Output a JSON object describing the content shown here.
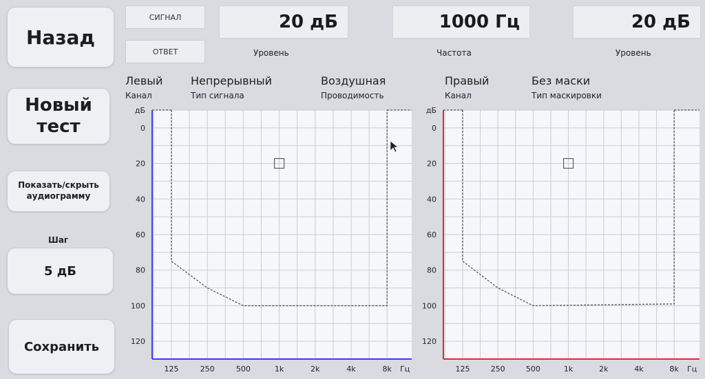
{
  "nav": {
    "back_label": "Назад",
    "new_test_label": "Новый тест",
    "toggle_label": "Показать/скрыть аудиограмму",
    "step_caption": "Шаг",
    "step_value": "5 дБ",
    "save_label": "Сохранить"
  },
  "indicators": {
    "signal_label": "СИГНАЛ",
    "response_label": "ОТВЕТ"
  },
  "readouts": {
    "level_left_value": "20 дБ",
    "level_left_caption": "Уровень",
    "frequency_value": "1000 Гц",
    "frequency_caption": "Частота",
    "level_right_value": "20 дБ",
    "level_right_caption": "Уровень"
  },
  "left_info": {
    "channel_value": "Левый",
    "channel_caption": "Канал",
    "signal_type_value": "Непрерывный",
    "signal_type_caption": "Тип сигнала",
    "conduction_value": "Воздушная",
    "conduction_caption": "Проводимость"
  },
  "right_info": {
    "channel_value": "Правый",
    "channel_caption": "Канал",
    "masking_value": "Без маски",
    "masking_caption": "Тип маскировки"
  },
  "chart_data": [
    {
      "type": "line",
      "panel": "left",
      "axis_color": "#3a3aff",
      "x": [
        "125",
        "250",
        "500",
        "1k",
        "2k",
        "4k",
        "8k"
      ],
      "xlabel": "Гц",
      "ylabel": "дБ",
      "y_ticks": [
        0,
        20,
        40,
        60,
        80,
        100,
        120
      ],
      "ylim": [
        -10,
        130
      ],
      "grid": true,
      "limit_boundary": [
        {
          "x": "125",
          "y": -10
        },
        {
          "x": "125",
          "y": 75
        },
        {
          "x": "250",
          "y": 90
        },
        {
          "x": "500",
          "y": 100
        },
        {
          "x": "8k",
          "y": 100
        },
        {
          "x": "8k",
          "y": -10
        }
      ],
      "cursor": {
        "x": "1k",
        "y": 20
      }
    },
    {
      "type": "line",
      "panel": "right",
      "axis_color": "#e02a2a",
      "x": [
        "125",
        "250",
        "500",
        "1k",
        "2k",
        "4k",
        "8k"
      ],
      "xlabel": "Гц",
      "ylabel": "дБ",
      "y_ticks": [
        0,
        20,
        40,
        60,
        80,
        100,
        120
      ],
      "ylim": [
        -10,
        130
      ],
      "grid": true,
      "limit_boundary": [
        {
          "x": "125",
          "y": -10
        },
        {
          "x": "125",
          "y": 75
        },
        {
          "x": "250",
          "y": 90
        },
        {
          "x": "500",
          "y": 100
        },
        {
          "x": "8k",
          "y": 99
        },
        {
          "x": "8k",
          "y": -10
        }
      ],
      "cursor": {
        "x": "1k",
        "y": 20
      }
    }
  ]
}
